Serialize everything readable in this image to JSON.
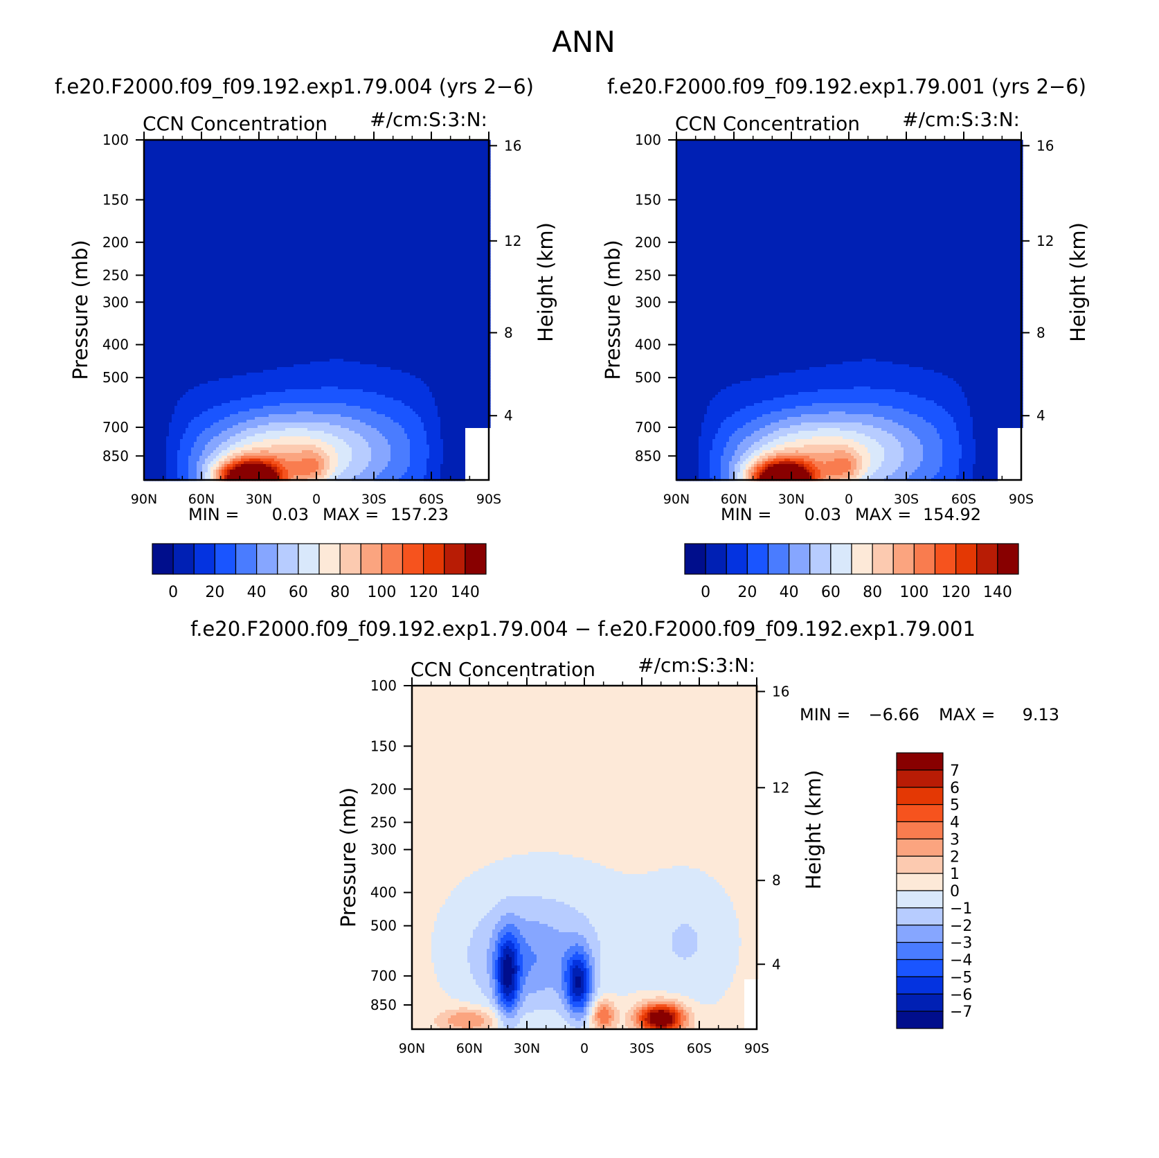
{
  "page": {
    "title": "ANN"
  },
  "colors": {
    "abs_levels": [
      "#000e8c",
      "#0020b4",
      "#0433e0",
      "#1a55ff",
      "#4a7cff",
      "#86a6ff",
      "#b7ccff",
      "#d9e8fb",
      "#fde9d8",
      "#fccab0",
      "#fba47f",
      "#f97c4f",
      "#f6531e",
      "#e43804",
      "#b81c05",
      "#880000"
    ],
    "diff_levels": [
      "#880000",
      "#b81c05",
      "#e43804",
      "#f6531e",
      "#f97c4f",
      "#fba47f",
      "#fccab0",
      "#fde9d8",
      "#d9e8fb",
      "#b7ccff",
      "#86a6ff",
      "#4a7cff",
      "#1a55ff",
      "#0433e0",
      "#0020b4",
      "#000e8c"
    ]
  },
  "chart_data": [
    {
      "type": "heatmap",
      "panel": "case",
      "case_title": "f.e20.F2000.f09_f09.192.exp1.79.004 (yrs 2−6)",
      "left_title": "CCN Concentration",
      "right_title": "#/cm:S:3:N:",
      "ylabel": "Pressure (mb)",
      "ylabel_right": "Height (km)",
      "x_ticks": [
        "90N",
        "60N",
        "30N",
        "0",
        "30S",
        "60S",
        "90S"
      ],
      "y_ticks": [
        "100",
        "150",
        "200",
        "250",
        "300",
        "400",
        "500",
        "700",
        "850"
      ],
      "y_ticks_right": [
        "16",
        "12",
        "8",
        "4"
      ],
      "min_label": "MIN =",
      "min_value": "0.03",
      "max_label": "MAX =",
      "max_value": "157.23",
      "colorbar_labels": [
        "0",
        "20",
        "40",
        "60",
        "80",
        "100",
        "120",
        "140"
      ],
      "contour_levels": [
        0,
        10,
        20,
        30,
        40,
        50,
        60,
        70,
        80,
        90,
        100,
        110,
        120,
        130,
        140
      ],
      "xlim": [
        90,
        -90
      ],
      "ylim": [
        100,
        1000
      ],
      "y_scale": "log"
    },
    {
      "type": "heatmap",
      "panel": "control",
      "case_title": "f.e20.F2000.f09_f09.192.exp1.79.001 (yrs 2−6)",
      "left_title": "CCN Concentration",
      "right_title": "#/cm:S:3:N:",
      "ylabel": "Pressure (mb)",
      "ylabel_right": "Height (km)",
      "x_ticks": [
        "90N",
        "60N",
        "30N",
        "0",
        "30S",
        "60S",
        "90S"
      ],
      "y_ticks": [
        "100",
        "150",
        "200",
        "250",
        "300",
        "400",
        "500",
        "700",
        "850"
      ],
      "y_ticks_right": [
        "16",
        "12",
        "8",
        "4"
      ],
      "min_label": "MIN =",
      "min_value": "0.03",
      "max_label": "MAX =",
      "max_value": "154.92",
      "colorbar_labels": [
        "0",
        "20",
        "40",
        "60",
        "80",
        "100",
        "120",
        "140"
      ],
      "contour_levels": [
        0,
        10,
        20,
        30,
        40,
        50,
        60,
        70,
        80,
        90,
        100,
        110,
        120,
        130,
        140
      ],
      "xlim": [
        90,
        -90
      ],
      "ylim": [
        100,
        1000
      ],
      "y_scale": "log"
    },
    {
      "type": "heatmap",
      "panel": "difference",
      "case_title": "f.e20.F2000.f09_f09.192.exp1.79.004 − f.e20.F2000.f09_f09.192.exp1.79.001",
      "left_title": "CCN Concentration",
      "right_title": "#/cm:S:3:N:",
      "ylabel": "Pressure (mb)",
      "ylabel_right": "Height (km)",
      "x_ticks": [
        "90N",
        "60N",
        "30N",
        "0",
        "30S",
        "60S",
        "90S"
      ],
      "y_ticks": [
        "100",
        "150",
        "200",
        "250",
        "300",
        "400",
        "500",
        "700",
        "850"
      ],
      "y_ticks_right": [
        "16",
        "12",
        "8",
        "4"
      ],
      "min_label": "MIN =",
      "min_value": "−6.66",
      "max_label": "MAX =",
      "max_value": "9.13",
      "colorbar_labels": [
        "7",
        "6",
        "5",
        "4",
        "3",
        "2",
        "1",
        "0",
        "−1",
        "−2",
        "−3",
        "−4",
        "−5",
        "−6",
        "−7"
      ],
      "contour_levels": [
        7,
        6,
        5,
        4,
        3,
        2,
        1,
        0,
        -1,
        -2,
        -3,
        -4,
        -5,
        -6,
        -7
      ],
      "xlim": [
        90,
        -90
      ],
      "ylim": [
        100,
        1000
      ],
      "y_scale": "log"
    }
  ]
}
